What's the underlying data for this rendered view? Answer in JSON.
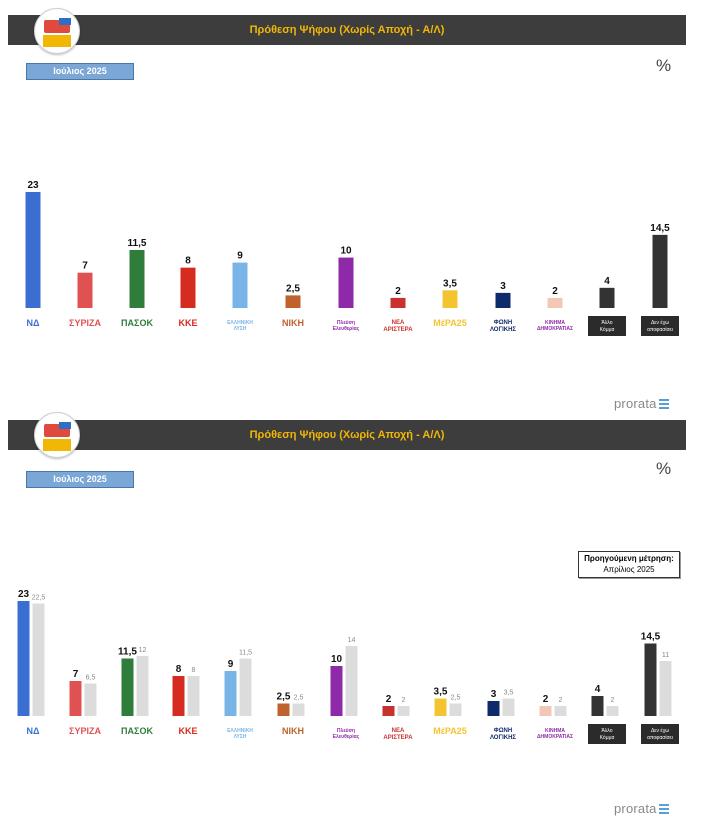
{
  "header_title": "Πρόθεση Ψήφου (Χωρίς Αποχή - Α/Λ)",
  "period": "Ιούλιος 2025",
  "unit_symbol": "%",
  "brand": "prorata",
  "previous_box": {
    "line1": "Προηγούμενη μέτρηση:",
    "line2": "Απρίλιος 2025"
  },
  "colors": {
    "header_bg": "#3d3d3d",
    "header_text": "#f2b705",
    "previous_bar": "#dcdcdc"
  },
  "parties": [
    {
      "label": "ΝΔ",
      "icon": "nd-logo",
      "color": "#3a6fd1"
    },
    {
      "label": "ΣΥΡΙΖΑ",
      "icon": "syriza-logo",
      "color": "#e05252"
    },
    {
      "label": "ΠΑΣΟΚ",
      "icon": "pasok-logo",
      "color": "#2e7d3a"
    },
    {
      "label": "ΚΚΕ",
      "icon": "kke-logo",
      "color": "#d62b1f"
    },
    {
      "label": "ΕΛΛΗΝΙΚΗ ΛΥΣΗ",
      "icon": "elliniki-lysi-logo",
      "color": "#78b4e6"
    },
    {
      "label": "ΝΙΚΗ",
      "icon": "niki-logo",
      "color": "#c0622e"
    },
    {
      "label": "Πλεύση Ελευθερίας",
      "icon": "plefsi-logo",
      "color": "#8e2aa8"
    },
    {
      "label": "ΝΕΑ ΑΡΙΣΤΕΡΑ",
      "icon": "nea-aristera-logo",
      "color": "#c8322e"
    },
    {
      "label": "ΜέΡΑ25",
      "icon": "mera25-logo",
      "color": "#f4c430"
    },
    {
      "label": "ΦΩΝΗ ΛΟΓΙΚΗΣ",
      "icon": "foni-logikis-logo",
      "color": "#0f2a6b"
    },
    {
      "label": "ΚΙΝΗΜΑ ΔΗΜΟΚΡΑΤΙΑΣ",
      "icon": "kinima-dimokratias-logo",
      "color": "#f3c7b6"
    },
    {
      "label": "Άλλο Κόμμα",
      "icon": "other-party-box",
      "color": "#333333"
    },
    {
      "label": "Δεν έχω αποφασίσει",
      "icon": "undecided-box",
      "color": "#333333"
    }
  ],
  "chart_data": [
    {
      "type": "bar",
      "categories": [
        "ΝΔ",
        "ΣΥΡΙΖΑ",
        "ΠΑΣΟΚ",
        "ΚΚΕ",
        "ΕΛΛΗΝΙΚΗ ΛΥΣΗ",
        "ΝΙΚΗ",
        "Πλεύση Ελευθερίας",
        "ΝΕΑ ΑΡΙΣΤΕΡΑ",
        "ΜέΡΑ25",
        "ΦΩΝΗ ΛΟΓΙΚΗΣ",
        "ΚΙΝΗΜΑ ΔΗΜΟΚΡΑΤΙΑΣ",
        "Άλλο Κόμμα",
        "Δεν έχω αποφασίσει"
      ],
      "values": [
        23,
        7,
        11.5,
        8,
        9,
        2.5,
        10,
        2,
        3.5,
        3,
        2,
        4,
        14.5
      ],
      "labels": [
        "23",
        "7",
        "11,5",
        "8",
        "9",
        "2,5",
        "10",
        "2",
        "3,5",
        "3",
        "2",
        "4",
        "14,5"
      ],
      "ylim": [
        0,
        23
      ],
      "grid": false
    },
    {
      "type": "bar",
      "categories": [
        "ΝΔ",
        "ΣΥΡΙΖΑ",
        "ΠΑΣΟΚ",
        "ΚΚΕ",
        "ΕΛΛΗΝΙΚΗ ΛΥΣΗ",
        "ΝΙΚΗ",
        "Πλεύση Ελευθερίας",
        "ΝΕΑ ΑΡΙΣΤΕΡΑ",
        "ΜέΡΑ25",
        "ΦΩΝΗ ΛΟΓΙΚΗΣ",
        "ΚΙΝΗΜΑ ΔΗΜΟΚΡΑΤΙΑΣ",
        "Άλλο Κόμμα",
        "Δεν έχω αποφασίσει"
      ],
      "series": [
        {
          "name": "Ιούλιος 2025",
          "values": [
            23,
            7,
            11.5,
            8,
            9,
            2.5,
            10,
            2,
            3.5,
            3,
            2,
            4,
            14.5
          ],
          "labels": [
            "23",
            "7",
            "11,5",
            "8",
            "9",
            "2,5",
            "10",
            "2",
            "3,5",
            "3",
            "2",
            "4",
            "14,5"
          ]
        },
        {
          "name": "Απρίλιος 2025",
          "values": [
            22.5,
            6.5,
            12,
            8,
            11.5,
            2.5,
            14,
            2,
            2.5,
            3.5,
            2,
            2,
            11
          ],
          "labels": [
            "22,5",
            "6,5",
            "12",
            "8",
            "11,5",
            "2,5",
            "14",
            "2",
            "2,5",
            "3,5",
            "2",
            "2",
            "11"
          ]
        }
      ],
      "ylim": [
        0,
        23
      ],
      "grid": false
    }
  ]
}
